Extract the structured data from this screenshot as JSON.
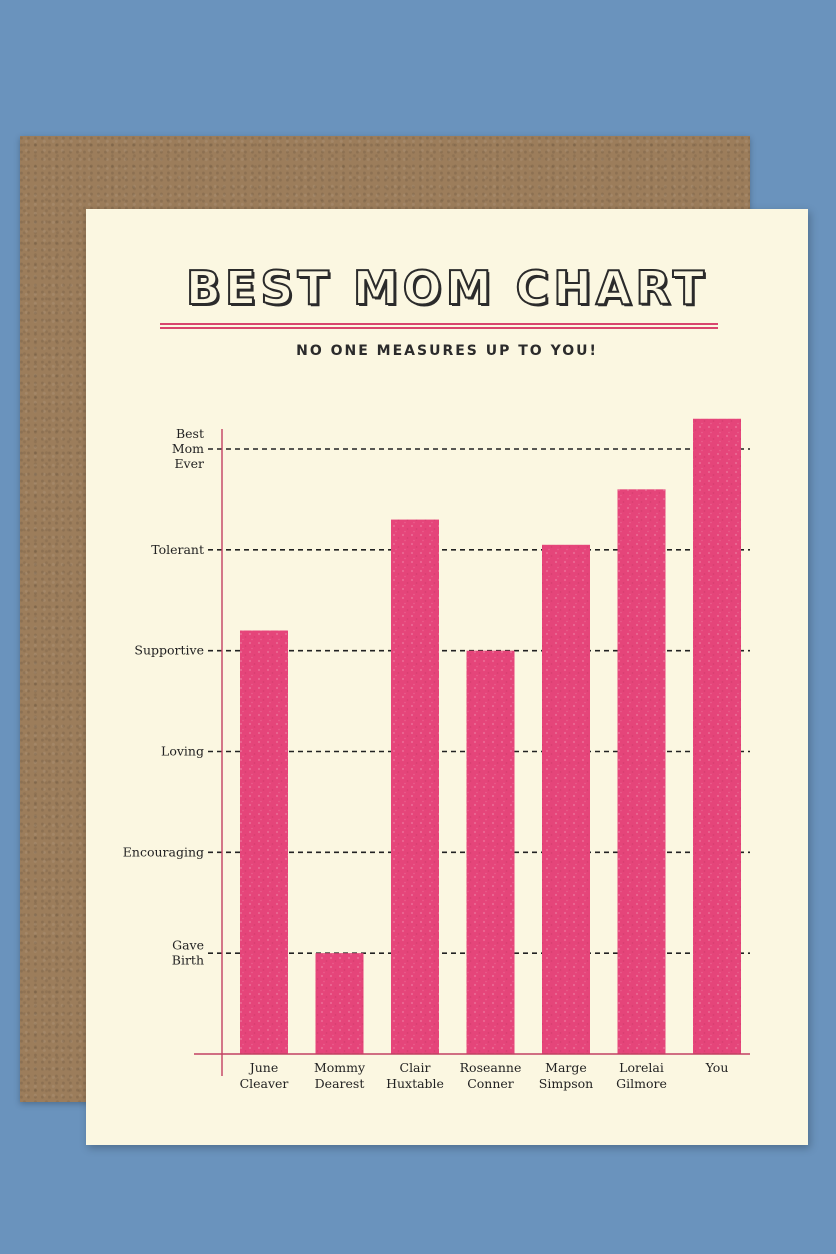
{
  "card": {
    "title": "BEST MOM CHART",
    "subtitle": "NO ONE MEASURES UP TO YOU!"
  },
  "colors": {
    "background": "#6a93bd",
    "envelope": "#9c7d5b",
    "card": "#fbf7e1",
    "bars": "#e5457a",
    "axis": "#c24062"
  },
  "chart_data": {
    "type": "bar",
    "title": "BEST MOM CHART",
    "subtitle": "NO ONE MEASURES UP TO YOU!",
    "xlabel": "",
    "ylabel": "",
    "y_levels": [
      {
        "lines": [
          "Gave",
          "Birth"
        ],
        "value": 1
      },
      {
        "lines": [
          "Encouraging"
        ],
        "value": 2
      },
      {
        "lines": [
          "Loving"
        ],
        "value": 3
      },
      {
        "lines": [
          "Supportive"
        ],
        "value": 4
      },
      {
        "lines": [
          "Tolerant"
        ],
        "value": 5
      },
      {
        "lines": [
          "Best",
          "Mom",
          "Ever"
        ],
        "value": 6
      }
    ],
    "ylim": [
      0,
      6.3
    ],
    "grid": true,
    "categories": [
      {
        "lines": [
          "June",
          "Cleaver"
        ]
      },
      {
        "lines": [
          "Mommy",
          "Dearest"
        ]
      },
      {
        "lines": [
          "Clair",
          "Huxtable"
        ]
      },
      {
        "lines": [
          "Roseanne",
          "Conner"
        ]
      },
      {
        "lines": [
          "Marge",
          "Simpson"
        ]
      },
      {
        "lines": [
          "Lorelai",
          "Gilmore"
        ]
      },
      {
        "lines": [
          "You"
        ]
      }
    ],
    "values": [
      4.2,
      1.0,
      5.3,
      4.0,
      5.05,
      5.6,
      6.3
    ]
  }
}
